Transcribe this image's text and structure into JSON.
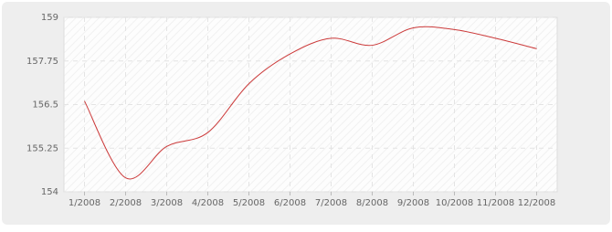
{
  "chart_data": {
    "type": "line",
    "categories": [
      "1/2008",
      "2/2008",
      "3/2008",
      "4/2008",
      "5/2008",
      "6/2008",
      "7/2008",
      "8/2008",
      "9/2008",
      "10/2008",
      "11/2008",
      "12/2008"
    ],
    "values": [
      156.6,
      154.4,
      155.3,
      155.7,
      157.1,
      157.95,
      158.4,
      158.2,
      158.7,
      158.65,
      158.4,
      158.1
    ],
    "color": "#cc3a3a",
    "ylim": [
      154,
      159
    ],
    "yticks": [
      154,
      155.25,
      156.5,
      157.75,
      159
    ],
    "grid": true
  }
}
